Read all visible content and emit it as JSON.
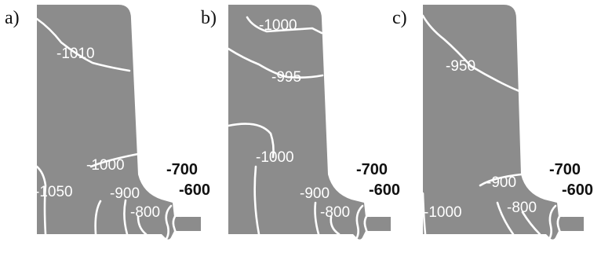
{
  "panels": [
    {
      "letter": "a)",
      "labels": {
        "l1": "-1010",
        "l2": "-1000",
        "l3": "-1050",
        "l4": "-900",
        "l5": "-800",
        "l6": "-700",
        "l7": "-600"
      }
    },
    {
      "letter": "b)",
      "labels": {
        "l1": "-1000",
        "l2": "-995",
        "l3": "-1000",
        "l4": "-900",
        "l5": "-800",
        "l6": "-700",
        "l7": "-600"
      }
    },
    {
      "letter": "c)",
      "labels": {
        "l1": "-950",
        "l2": "-1000",
        "l3": "-900",
        "l4": "-800",
        "l5": "-700",
        "l6": "-600"
      }
    }
  ]
}
